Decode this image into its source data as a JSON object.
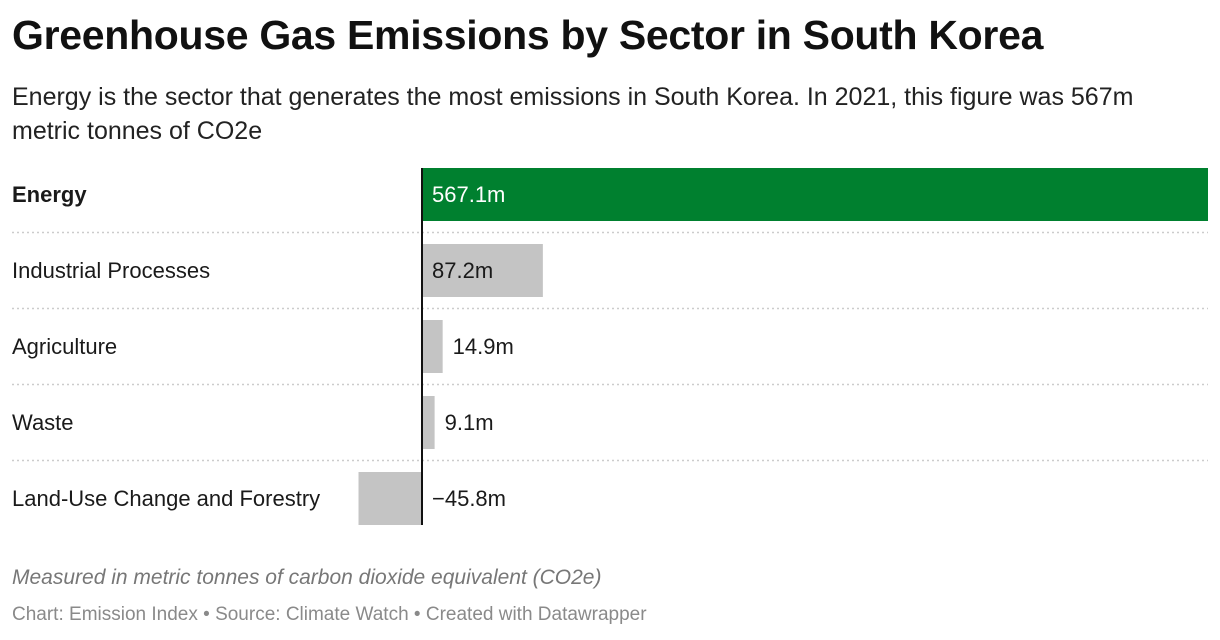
{
  "header": {
    "title": "Greenhouse Gas Emissions by Sector in South Korea",
    "subtitle": "Energy is the sector that generates the most emissions in South Korea. In 2021, this figure was 567m metric tonnes of CO2e"
  },
  "chart_data": {
    "type": "bar",
    "orientation": "horizontal",
    "categories": [
      "Energy",
      "Industrial Processes",
      "Agriculture",
      "Waste",
      "Land-Use Change and Forestry"
    ],
    "values": [
      567.1,
      87.2,
      14.9,
      9.1,
      -45.8
    ],
    "value_labels": [
      "567.1m",
      "87.2m",
      "14.9m",
      "9.1m",
      "−45.8m"
    ],
    "highlight_category": "Energy",
    "colors": {
      "highlight": "#00802f",
      "default": "#c4c4c4",
      "axis": "#111111",
      "separator": "#cccccc"
    },
    "grid": false,
    "legend": "none"
  },
  "notes": "Measured in metric tonnes of carbon dioxide equivalent (CO2e)",
  "footer": "Chart: Emission Index • Source: Climate Watch • Created with Datawrapper"
}
